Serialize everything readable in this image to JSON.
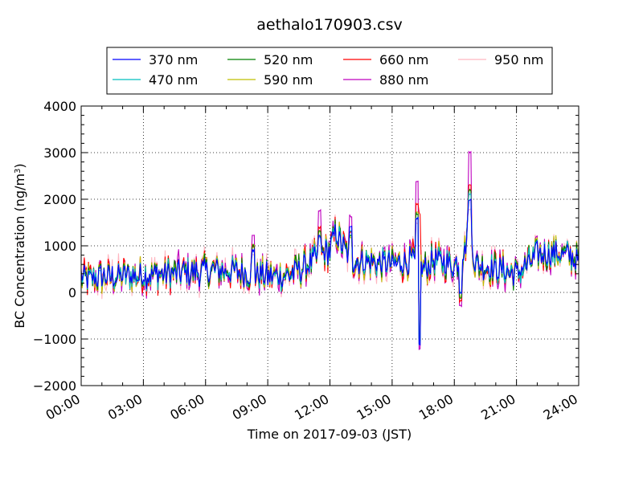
{
  "chart_data": {
    "type": "line",
    "title": "aethalo170903.csv",
    "xlabel": "Time on 2017-09-03 (JST)",
    "ylabel": "BC Concentration (ng/m",
    "ylabel_sup": "3",
    "ylabel_end": ")",
    "xlim": [
      "00:00",
      "24:00"
    ],
    "ylim": [
      -2000,
      4000
    ],
    "grid": true,
    "legend_position": "top",
    "x_tick_labels": [
      "00:00",
      "03:00",
      "06:00",
      "09:00",
      "12:00",
      "15:00",
      "18:00",
      "21:00",
      "24:00"
    ],
    "y_tick_labels": [
      "4000",
      "3000",
      "2000",
      "1000",
      "0",
      "−1000",
      "−2000"
    ],
    "y_tick_values": [
      4000,
      3000,
      2000,
      1000,
      0,
      -1000,
      -2000
    ],
    "series": [
      {
        "name": "370 nm",
        "color": "#0000ff"
      },
      {
        "name": "470 nm",
        "color": "#00bfbf"
      },
      {
        "name": "520 nm",
        "color": "#008000"
      },
      {
        "name": "590 nm",
        "color": "#bfbf00"
      },
      {
        "name": "660 nm",
        "color": "#ff0000"
      },
      {
        "name": "880 nm",
        "color": "#bf00bf"
      },
      {
        "name": "950 nm",
        "color": "#ffb6c1"
      }
    ],
    "base_profile": {
      "hours": [
        0,
        1,
        2,
        3,
        4,
        5,
        6,
        7,
        8,
        9,
        10,
        11,
        11.5,
        12,
        12.3,
        12.6,
        13,
        14,
        15,
        16,
        16.2,
        16.5,
        17,
        18,
        18.5,
        18.7,
        19,
        20,
        21,
        21.5,
        22,
        23,
        24
      ],
      "values": [
        300,
        320,
        350,
        380,
        400,
        420,
        450,
        470,
        420,
        350,
        380,
        600,
        800,
        900,
        1300,
        1000,
        700,
        650,
        600,
        700,
        600,
        500,
        700,
        600,
        900,
        1600,
        600,
        500,
        400,
        600,
        800,
        850,
        700
      ]
    },
    "spikes": [
      {
        "hour": 16.3,
        "values": [
          -1100,
          -1100,
          -1000,
          -1000,
          1700,
          -1200,
          -900
        ]
      },
      {
        "hour": 16.2,
        "values": [
          1600,
          1600,
          1700,
          1700,
          1900,
          2400,
          1500
        ]
      },
      {
        "hour": 18.75,
        "values": [
          2000,
          2100,
          2200,
          2200,
          2300,
          3000,
          1800
        ]
      },
      {
        "hour": 11.5,
        "values": [
          1200,
          1200,
          1300,
          1300,
          1400,
          1750,
          1200
        ]
      },
      {
        "hour": 13.0,
        "values": [
          1400,
          1300,
          1200,
          1200,
          1300,
          1650,
          1300
        ]
      },
      {
        "hour": 18.3,
        "values": [
          0,
          0,
          -100,
          -100,
          -200,
          -300,
          -100
        ]
      },
      {
        "hour": 8.3,
        "values": [
          900,
          900,
          1000,
          1000,
          1000,
          1250,
          800
        ]
      }
    ]
  }
}
